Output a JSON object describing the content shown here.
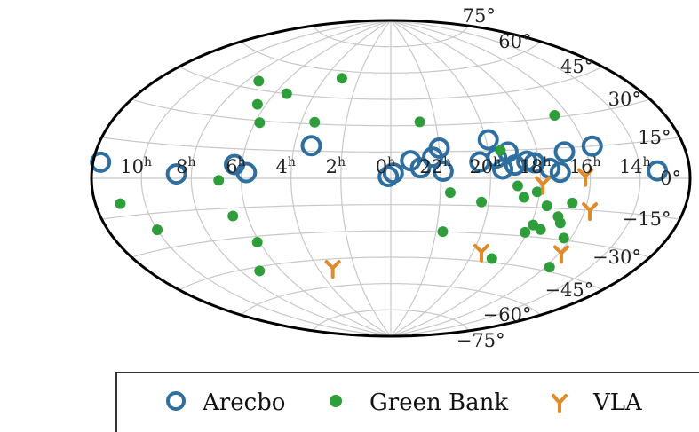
{
  "chart_data": {
    "type": "scatter",
    "projection": "aitoff",
    "grid": true,
    "legend_placement": "bottom",
    "ra_tick_labels": [
      "10h",
      "8h",
      "6h",
      "4h",
      "2h",
      "0h",
      "22h",
      "20h",
      "18h",
      "16h",
      "14h"
    ],
    "dec_tick_labels": [
      "75°",
      "60°",
      "45°",
      "30°",
      "15°",
      "0°",
      "−15°",
      "−30°",
      "−45°",
      "−60°",
      "−75°"
    ],
    "series": [
      {
        "name": "Arecbo",
        "color": "#2f6f9f",
        "marker": "open-circle",
        "points": [
          {
            "ra": 11.7,
            "dec": 6
          },
          {
            "ra": 8.6,
            "dec": 2
          },
          {
            "ra": 6.3,
            "dec": 7
          },
          {
            "ra": 5.8,
            "dec": 3
          },
          {
            "ra": 3.3,
            "dec": 18
          },
          {
            "ra": 0.1,
            "dec": 1
          },
          {
            "ra": 23.9,
            "dec": 3
          },
          {
            "ra": 23.2,
            "dec": 10
          },
          {
            "ra": 22.8,
            "dec": 6
          },
          {
            "ra": 22.3,
            "dec": 12
          },
          {
            "ra": 22.0,
            "dec": 17
          },
          {
            "ra": 21.9,
            "dec": 4
          },
          {
            "ra": 20.4,
            "dec": 9
          },
          {
            "ra": 19.9,
            "dec": 21
          },
          {
            "ra": 19.7,
            "dec": 11
          },
          {
            "ra": 19.5,
            "dec": 5
          },
          {
            "ra": 19.2,
            "dec": 14
          },
          {
            "ra": 19.0,
            "dec": 7
          },
          {
            "ra": 18.5,
            "dec": 9
          },
          {
            "ra": 18.2,
            "dec": 8
          },
          {
            "ra": 17.6,
            "dec": 5
          },
          {
            "ra": 17.2,
            "dec": 3
          },
          {
            "ra": 16.9,
            "dec": 13
          },
          {
            "ra": 15.7,
            "dec": 15
          },
          {
            "ra": 13.3,
            "dec": 3
          }
        ]
      },
      {
        "name": "Green Bank",
        "color": "#2e9e3a",
        "marker": "filled-circle",
        "points": [
          {
            "ra": 7.4,
            "dec": 49
          },
          {
            "ra": 6.4,
            "dec": 38
          },
          {
            "ra": 5.4,
            "dec": 45
          },
          {
            "ra": 3.0,
            "dec": 56
          },
          {
            "ra": 5.8,
            "dec": 29
          },
          {
            "ra": 3.4,
            "dec": 31
          },
          {
            "ra": 22.7,
            "dec": 32
          },
          {
            "ra": 6.9,
            "dec": -1
          },
          {
            "ra": 11.0,
            "dec": -10
          },
          {
            "ra": 10.0,
            "dec": -22
          },
          {
            "ra": 6.6,
            "dec": -19
          },
          {
            "ra": 6.1,
            "dec": -33
          },
          {
            "ra": 7.1,
            "dec": -47
          },
          {
            "ra": 21.6,
            "dec": -8
          },
          {
            "ra": 20.3,
            "dec": -13
          },
          {
            "ra": 21.7,
            "dec": -30
          },
          {
            "ra": 19.5,
            "dec": 15
          },
          {
            "ra": 18.9,
            "dec": -4
          },
          {
            "ra": 18.6,
            "dec": -10
          },
          {
            "ra": 18.1,
            "dec": -7
          },
          {
            "ra": 17.6,
            "dec": -14
          },
          {
            "ra": 17.0,
            "dec": -19
          },
          {
            "ra": 17.9,
            "dec": -24
          },
          {
            "ra": 18.1,
            "dec": -28
          },
          {
            "ra": 17.5,
            "dec": -26
          },
          {
            "ra": 16.8,
            "dec": -22
          },
          {
            "ra": 16.3,
            "dec": -29
          },
          {
            "ra": 16.6,
            "dec": 31
          },
          {
            "ra": 18.9,
            "dec": -43
          },
          {
            "ra": 15.8,
            "dec": -43
          },
          {
            "ra": 16.6,
            "dec": -12
          }
        ]
      },
      {
        "name": "VLA",
        "color": "#e08a2a",
        "marker": "tri-down",
        "points": [
          {
            "ra": 3.2,
            "dec": -50
          },
          {
            "ra": 19.6,
            "dec": -40
          },
          {
            "ra": 17.9,
            "dec": -3
          },
          {
            "ra": 16.2,
            "dec": 1
          },
          {
            "ra": 15.8,
            "dec": -15
          },
          {
            "ra": 15.9,
            "dec": -36
          }
        ]
      }
    ]
  }
}
